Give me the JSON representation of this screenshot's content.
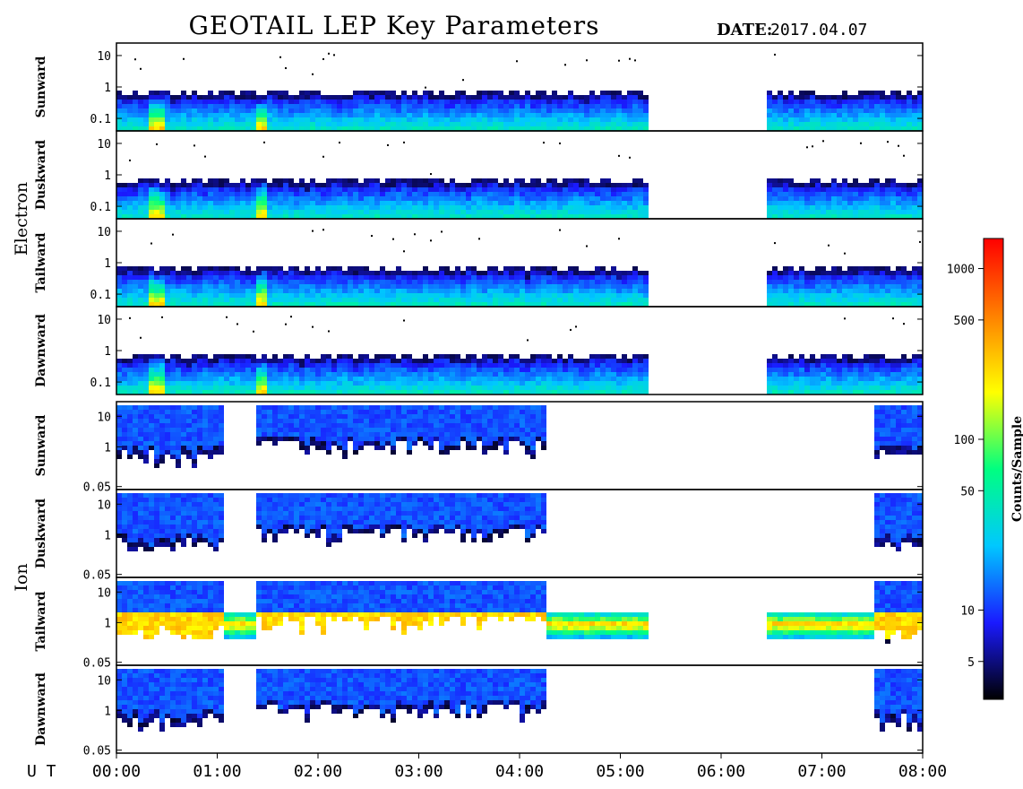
{
  "header": {
    "title": "GEOTAIL LEP Key Parameters",
    "date_label": "DATE:",
    "date_value": "2017.04.07"
  },
  "chart_data": {
    "type": "heatmap",
    "title": "GEOTAIL LEP Key Parameters",
    "date": "2017.04.07",
    "x_axis": {
      "label": "U T",
      "ticks": [
        "00:00",
        "01:00",
        "02:00",
        "03:00",
        "04:00",
        "05:00",
        "06:00",
        "07:00",
        "08:00"
      ],
      "range_hours": [
        0,
        8
      ]
    },
    "colorbar": {
      "label": "Counts/Sample",
      "scale": "log",
      "ticks": [
        "5",
        "10",
        "50",
        "100",
        "500",
        "1000"
      ],
      "tick_values": [
        5,
        10,
        50,
        100,
        500,
        1000
      ],
      "range": [
        3,
        1500
      ],
      "colormap": [
        "#000000",
        "#1a1aff",
        "#00c8ff",
        "#00ff80",
        "#ffff00",
        "#ff8000",
        "#ff0000"
      ]
    },
    "groups": [
      {
        "name": "Electron",
        "y_scale": "log",
        "y_ticks": [
          "10",
          "1",
          "0.1"
        ],
        "y_tick_values": [
          10,
          1,
          0.1
        ],
        "y_range": [
          0.04,
          25
        ],
        "panels": [
          {
            "label": "Sunward",
            "data_gaps_hours": [
              [
                5.25,
                6.45
              ]
            ]
          },
          {
            "label": "Duskward",
            "data_gaps_hours": [
              [
                5.25,
                6.45
              ]
            ]
          },
          {
            "label": "Tailward",
            "data_gaps_hours": [
              [
                5.25,
                6.45
              ]
            ]
          },
          {
            "label": "Dawnward",
            "data_gaps_hours": [
              [
                5.25,
                6.45
              ]
            ]
          }
        ]
      },
      {
        "name": "Ion",
        "y_scale": "log",
        "y_ticks": [
          "10",
          "1",
          "0.05"
        ],
        "y_tick_values": [
          10,
          1,
          0.05
        ],
        "y_range": [
          0.04,
          30
        ],
        "panels": [
          {
            "label": "Sunward"
          },
          {
            "label": "Duskward"
          },
          {
            "label": "Tailward"
          },
          {
            "label": "Dawnward"
          }
        ]
      }
    ]
  }
}
